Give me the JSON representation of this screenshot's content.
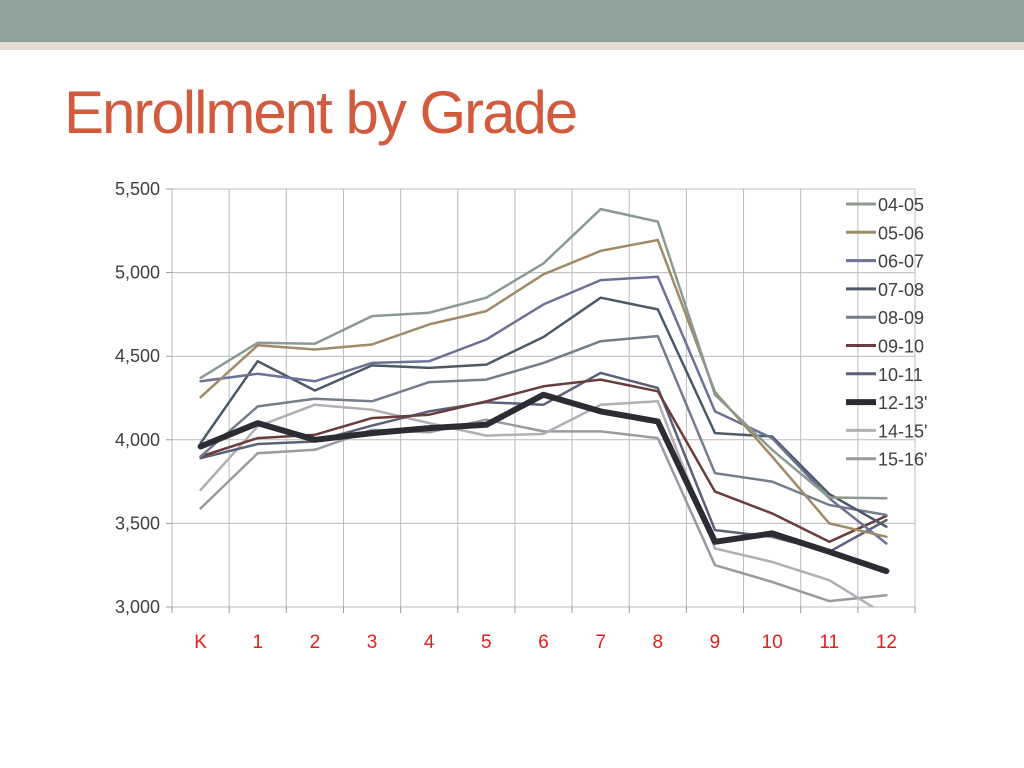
{
  "slide": {
    "title": "Enrollment by Grade",
    "band_color": "#8fa39a",
    "stripe_color": "#e4dbd2",
    "title_color": "#d25a3d"
  },
  "chart_data": {
    "type": "line",
    "title": "Enrollment by Grade",
    "xlabel": "",
    "ylabel": "",
    "categories": [
      "K",
      "1",
      "2",
      "3",
      "4",
      "5",
      "6",
      "7",
      "8",
      "9",
      "10",
      "11",
      "12"
    ],
    "ylim": [
      3000,
      5500
    ],
    "yticks": [
      3000,
      3500,
      4000,
      4500,
      5000,
      5500
    ],
    "ytick_labels": [
      "3,000",
      "3,500",
      "4,000",
      "4,500",
      "5,000",
      "5,500"
    ],
    "grid": "vertical and horizontal",
    "legend_position": "top-right",
    "series": [
      {
        "name": "04-05",
        "color": "#8a9a8e",
        "values": [
          4370,
          4580,
          4575,
          4740,
          4760,
          4850,
          5055,
          5380,
          5305,
          4270,
          3940,
          3655,
          3650
        ]
      },
      {
        "name": "05-06",
        "color": "#a08b68",
        "values": [
          4255,
          4565,
          4540,
          4570,
          4690,
          4770,
          4990,
          5130,
          5195,
          4285,
          3900,
          3500,
          3420
        ]
      },
      {
        "name": "06-07",
        "color": "#6e7196",
        "values": [
          4350,
          4395,
          4350,
          4460,
          4470,
          4600,
          4810,
          4955,
          4975,
          4170,
          4010,
          3650,
          3380
        ]
      },
      {
        "name": "07-08",
        "color": "#4b5a68",
        "values": [
          3980,
          4470,
          4295,
          4445,
          4430,
          4450,
          4615,
          4850,
          4780,
          4040,
          4020,
          3675,
          3480
        ]
      },
      {
        "name": "08-09",
        "color": "#737d8b",
        "values": [
          3900,
          4200,
          4245,
          4230,
          4345,
          4360,
          4460,
          4590,
          4620,
          3800,
          3750,
          3610,
          3550
        ]
      },
      {
        "name": "09-10",
        "color": "#6a3c3c",
        "values": [
          3900,
          4010,
          4030,
          4130,
          4150,
          4230,
          4320,
          4360,
          4290,
          3690,
          3560,
          3390,
          3545
        ]
      },
      {
        "name": "10-11",
        "color": "#5c6079",
        "values": [
          3890,
          3975,
          3990,
          4085,
          4170,
          4225,
          4210,
          4400,
          4310,
          3460,
          3420,
          3330,
          3520
        ]
      },
      {
        "name": "12-13'",
        "color": "#2c2c34",
        "values": [
          3960,
          4100,
          4000,
          4040,
          4070,
          4090,
          4270,
          4170,
          4110,
          3390,
          3440,
          3330,
          3215
        ]
      },
      {
        "name": "14-15'",
        "color": "#b0b0b6",
        "values": [
          3700,
          4080,
          4210,
          4180,
          4100,
          4025,
          4035,
          4210,
          4230,
          3350,
          3270,
          3160,
          2950
        ]
      },
      {
        "name": "15-16'",
        "color": "#9a9aa0",
        "values": [
          3590,
          3920,
          3940,
          4060,
          4045,
          4120,
          4050,
          4050,
          4010,
          3250,
          3150,
          3035,
          3070
        ]
      }
    ]
  }
}
